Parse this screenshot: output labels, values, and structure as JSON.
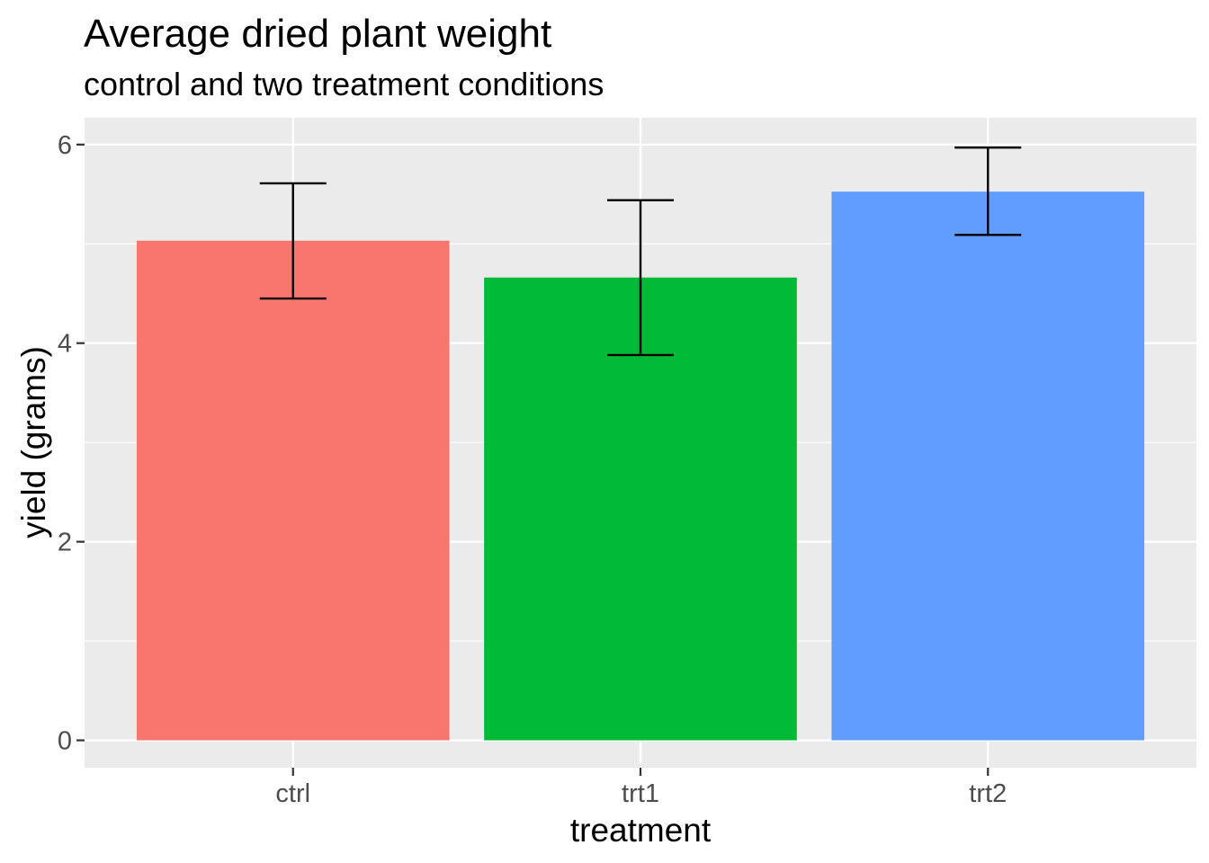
{
  "chart_data": {
    "type": "bar",
    "title": "Average dried plant weight",
    "subtitle": "control and two treatment conditions",
    "xlabel": "treatment",
    "ylabel": "yield (grams)",
    "categories": [
      "ctrl",
      "trt1",
      "trt2"
    ],
    "values": [
      5.032,
      4.661,
      5.526
    ],
    "error_low": [
      4.45,
      3.88,
      5.09
    ],
    "error_high": [
      5.61,
      5.44,
      5.97
    ],
    "bar_colors": [
      "#F8766D",
      "#00BA38",
      "#619CFF"
    ],
    "ylim": [
      -0.276,
      6.27
    ],
    "yticks": [
      0,
      2,
      4,
      6
    ],
    "ytick_labels": [
      "0",
      "2",
      "4",
      "6"
    ],
    "minor_yticks": [
      1,
      3,
      5
    ],
    "grid": true,
    "legend": "none",
    "panel_background": "#EBEBEB"
  }
}
